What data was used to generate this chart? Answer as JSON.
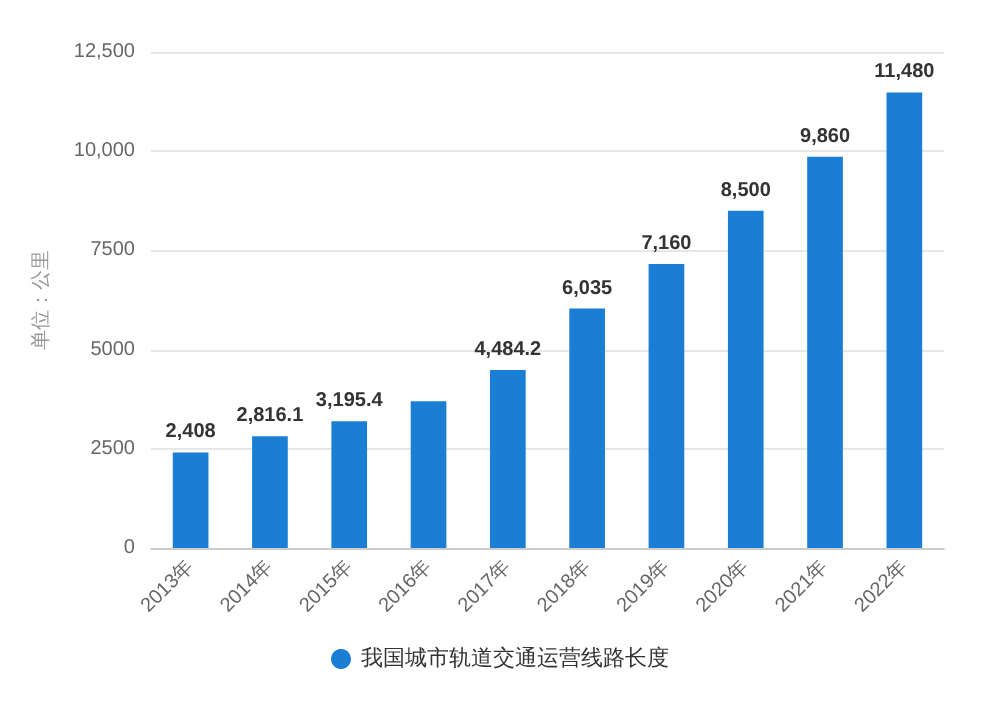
{
  "chart_data": {
    "type": "bar",
    "ylabel": "单位：公里",
    "categories": [
      "2013年",
      "2014年",
      "2015年",
      "2016年",
      "2017年",
      "2018年",
      "2019年",
      "2020年",
      "2021年",
      "2022年"
    ],
    "series": [
      {
        "name": "我国城市轨道交通运营线路长度",
        "color": "#1a7fd4",
        "values": [
          2408,
          2816.1,
          3195.4,
          3700,
          4484.2,
          6035,
          7160,
          8500,
          9860,
          11480
        ],
        "value_labels": [
          "2,408",
          "2,816.1",
          "3,195.4",
          null,
          "4,484.2",
          "6,035",
          "7,160",
          "8,500",
          "9,860",
          "11,480"
        ]
      }
    ],
    "ylim": [
      0,
      12500
    ],
    "yticks": [
      0,
      2500,
      5000,
      7500,
      {
        "value": 10000,
        "label": "10,000"
      },
      {
        "value": 12500,
        "label": "12,500"
      }
    ],
    "grid": "y",
    "legend": "bottom"
  }
}
